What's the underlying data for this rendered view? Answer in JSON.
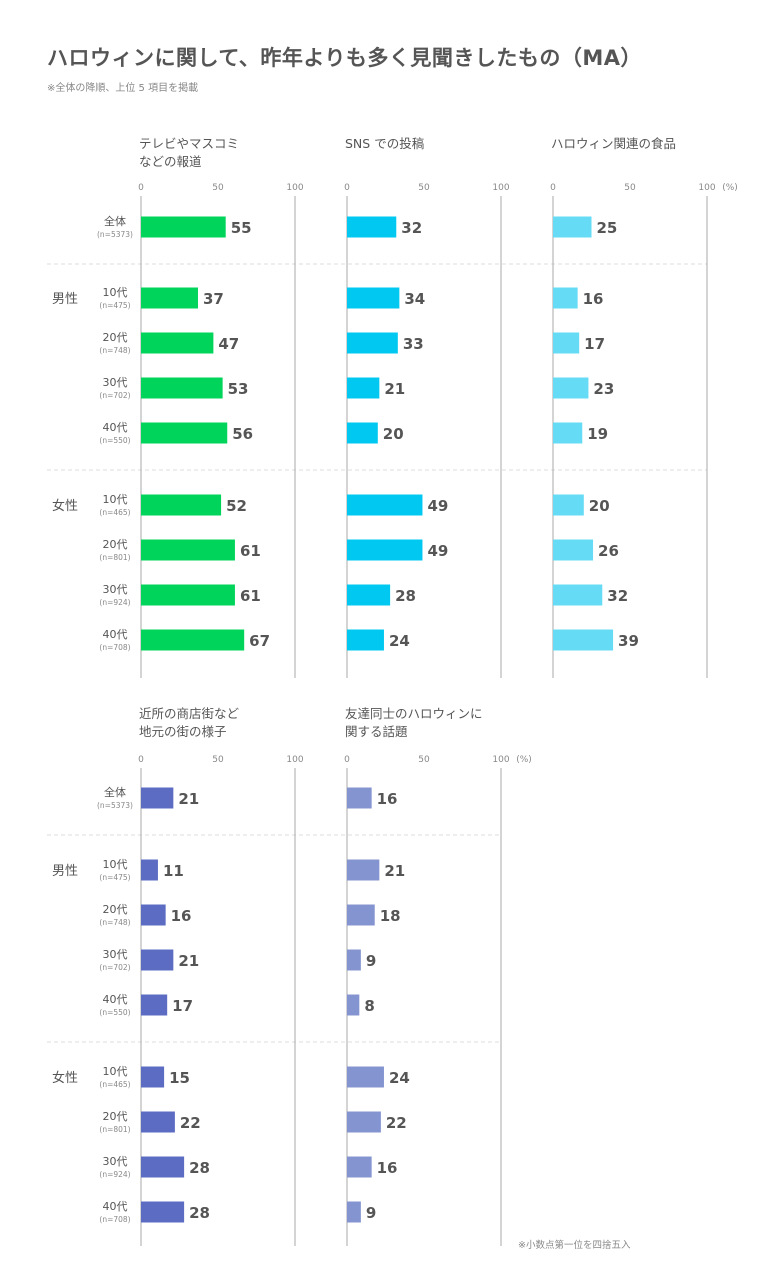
{
  "title": "ハロウィンに関して、昨年よりも多く見聞きしたもの（MA）",
  "subtitle": "※全体の降順、上位 5 項目を掲載",
  "footnote": "※小数点第一位を四捨五入",
  "unit_label": "(%)",
  "colors": {
    "text": "#555555",
    "light_text": "#888888",
    "axis": "#aaaaaa",
    "divider": "#dddddd"
  },
  "chart_data": {
    "type": "bar",
    "orientation": "horizontal",
    "xlim": [
      0,
      100
    ],
    "ticks": [
      0,
      50,
      100
    ],
    "rows": [
      {
        "group": "",
        "label": "全体",
        "n": "(n=5373)"
      },
      {
        "group": "男性",
        "label": "10代",
        "n": "(n=475)"
      },
      {
        "group": "男性",
        "label": "20代",
        "n": "(n=748)"
      },
      {
        "group": "男性",
        "label": "30代",
        "n": "(n=702)"
      },
      {
        "group": "男性",
        "label": "40代",
        "n": "(n=550)"
      },
      {
        "group": "女性",
        "label": "10代",
        "n": "(n=465)"
      },
      {
        "group": "女性",
        "label": "20代",
        "n": "(n=801)"
      },
      {
        "group": "女性",
        "label": "30代",
        "n": "(n=924)"
      },
      {
        "group": "女性",
        "label": "40代",
        "n": "(n=708)"
      }
    ],
    "series": [
      {
        "name": "テレビやマスコミ\nなどの報道",
        "color": "#00d45a",
        "values": [
          55,
          37,
          47,
          53,
          56,
          52,
          61,
          61,
          67
        ]
      },
      {
        "name": "SNS での投稿",
        "color": "#00c8f0",
        "values": [
          32,
          34,
          33,
          21,
          20,
          49,
          49,
          28,
          24
        ]
      },
      {
        "name": "ハロウィン関連の食品",
        "color": "#66dbf5",
        "values": [
          25,
          16,
          17,
          23,
          19,
          20,
          26,
          32,
          39
        ]
      },
      {
        "name": "近所の商店街など\n地元の街の様子",
        "color": "#5b6cc2",
        "values": [
          21,
          11,
          16,
          21,
          17,
          15,
          22,
          28,
          28
        ]
      },
      {
        "name": "友達同士のハロウィンに\n関する話題",
        "color": "#8494d0",
        "values": [
          16,
          21,
          18,
          9,
          8,
          24,
          22,
          16,
          9
        ]
      }
    ]
  }
}
